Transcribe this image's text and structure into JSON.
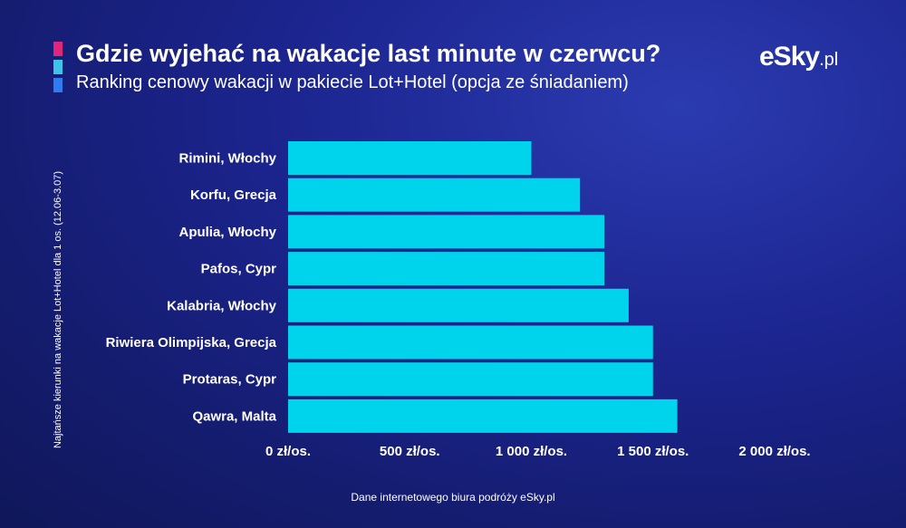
{
  "title": "Gdzie wyjehać na wakacje last minute w czerwcu?",
  "subtitle": "Ranking cenowy wakacji w pakiecie Lot+Hotel (opcja ze śniadaniem)",
  "logo": {
    "brand": "eSky",
    "domain": ".pl"
  },
  "source": "Dane internetowego biura podróży eSky.pl",
  "colors": {
    "bar": "#00d4ec",
    "accent_pink": "#e0267a",
    "accent_cyan": "#3ec4e8",
    "accent_blue": "#2f7cf2"
  },
  "chart_data": {
    "type": "bar",
    "orientation": "horizontal",
    "ylabel": "Najtańsze kierunki na wakacje Lot+Hotel dla 1 os. (12.06-3.07)",
    "categories": [
      "Rimini, Włochy",
      "Korfu, Grecja",
      "Apulia, Włochy",
      "Pafos, Cypr",
      "Kalabria, Włochy",
      "Riwiera Olimpijska, Grecja",
      "Protaras, Cypr",
      "Qawra, Malta"
    ],
    "values": [
      1000,
      1200,
      1300,
      1300,
      1400,
      1500,
      1500,
      1600
    ],
    "xlim": [
      0,
      2000
    ],
    "ticks": [
      0,
      500,
      1000,
      1500,
      2000
    ],
    "tick_labels": [
      "0 zł/os.",
      "500 zł/os.",
      "1 000 zł/os.",
      "1 500 zł/os.",
      "2 000 zł/os."
    ],
    "grid": false,
    "legend": "none"
  }
}
